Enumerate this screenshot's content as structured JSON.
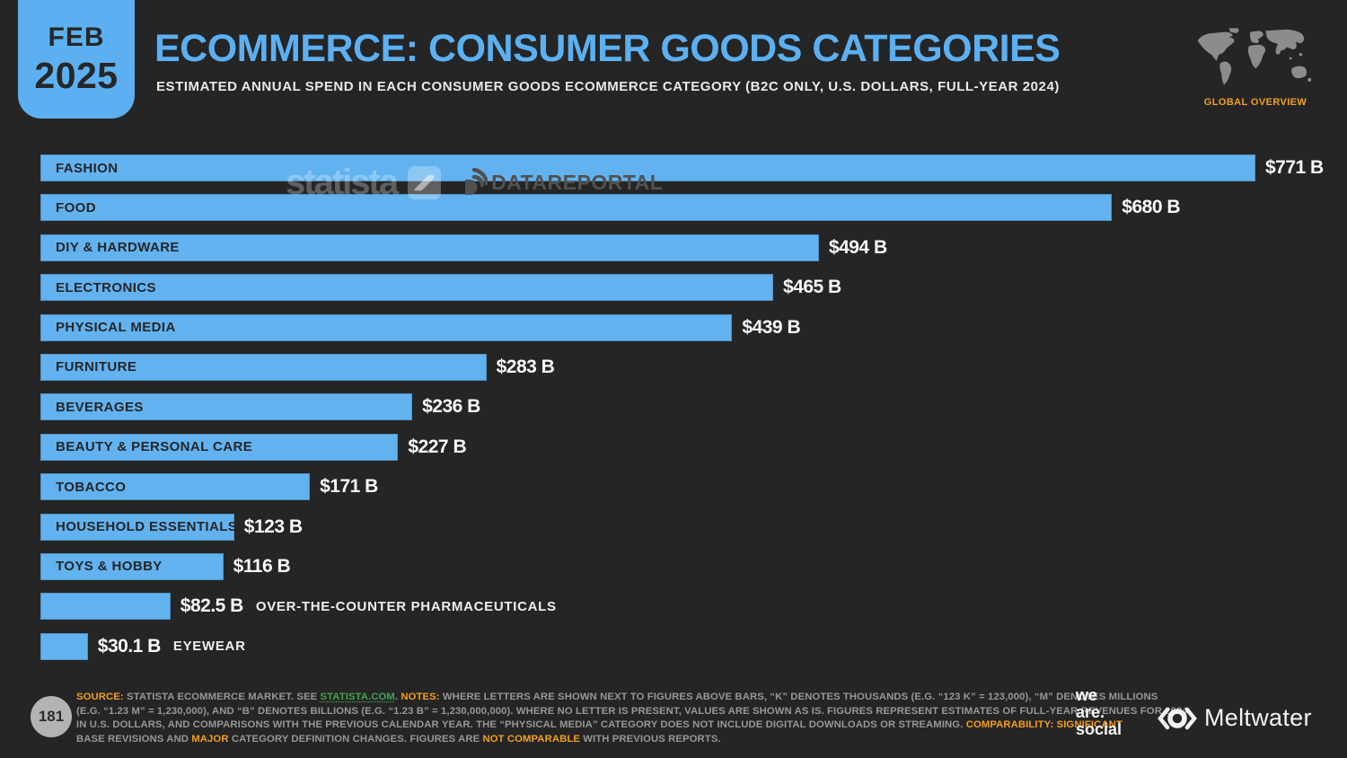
{
  "header": {
    "badge_month": "FEB",
    "badge_year": "2025",
    "title": "ECOMMERCE: CONSUMER GOODS CATEGORIES",
    "subtitle": "ESTIMATED ANNUAL SPEND IN EACH CONSUMER GOODS ECOMMERCE CATEGORY (B2C ONLY, U.S. DOLLARS, FULL-YEAR 2024)",
    "overview_label": "GLOBAL OVERVIEW"
  },
  "watermarks": {
    "statista": "statista",
    "datareportal": "DATAREPORTAL"
  },
  "chart_data": {
    "type": "bar",
    "orientation": "horizontal",
    "title": "ECOMMERCE: CONSUMER GOODS CATEGORIES",
    "subtitle": "ESTIMATED ANNUAL SPEND IN EACH CONSUMER GOODS ECOMMERCE CATEGORY (B2C ONLY, U.S. DOLLARS, FULL-YEAR 2024)",
    "unit": "U.S. dollars, billions",
    "categories": [
      "FASHION",
      "FOOD",
      "DIY & HARDWARE",
      "ELECTRONICS",
      "PHYSICAL MEDIA",
      "FURNITURE",
      "BEVERAGES",
      "BEAUTY & PERSONAL CARE",
      "TOBACCO",
      "HOUSEHOLD ESSENTIALS",
      "TOYS & HOBBY",
      "OVER-THE-COUNTER PHARMACEUTICALS",
      "EYEWEAR"
    ],
    "values": [
      771,
      680,
      494,
      465,
      439,
      283,
      236,
      227,
      171,
      123,
      116,
      82.5,
      30.1
    ],
    "value_labels": [
      "$771 B",
      "$680 B",
      "$494 B",
      "$465 B",
      "$439 B",
      "$283 B",
      "$236 B",
      "$227 B",
      "$171 B",
      "$123 B",
      "$116 B",
      "$82.5 B",
      "$30.1 B"
    ],
    "label_outside": [
      false,
      false,
      false,
      false,
      false,
      false,
      false,
      false,
      false,
      false,
      false,
      true,
      true
    ],
    "xlim": [
      0,
      771
    ],
    "grid": false,
    "legend": false,
    "bar_color": "#62b2f0"
  },
  "footer": {
    "page_number": "181",
    "source_lines": [
      [
        {
          "t": "SOURCE:",
          "s": "ob"
        },
        {
          "t": " STATISTA ECOMMERCE MARKET. SEE ",
          "s": "n"
        },
        {
          "t": "STATISTA.COM",
          "s": "g"
        },
        {
          "t": ". ",
          "s": "n"
        },
        {
          "t": "NOTES:",
          "s": "ob"
        },
        {
          "t": " WHERE LETTERS ARE SHOWN NEXT TO FIGURES ABOVE BARS, “K” DENOTES THOUSANDS (E.G. “123 K” = 123,000), “M” DENOTES MILLIONS",
          "s": "n"
        }
      ],
      [
        {
          "t": "(E.G. “1.23 M” = 1,230,000), AND “B” DENOTES BILLIONS (E.G. “1.23 B” = 1,230,000,000). WHERE NO LETTER IS PRESENT, VALUES ARE SHOWN AS IS. FIGURES REPRESENT ESTIMATES OF FULL-YEAR REVENUES FOR 2024",
          "s": "n"
        }
      ],
      [
        {
          "t": "IN U.S. DOLLARS, AND COMPARISONS WITH THE PREVIOUS CALENDAR YEAR. THE “PHYSICAL MEDIA” CATEGORY DOES NOT INCLUDE DIGITAL DOWNLOADS OR STREAMING. ",
          "s": "n"
        },
        {
          "t": "COMPARABILITY:",
          "s": "ob"
        },
        {
          "t": " ",
          "s": "n"
        },
        {
          "t": "SIGNIFICANT",
          "s": "o"
        }
      ],
      [
        {
          "t": "BASE REVISIONS AND ",
          "s": "n"
        },
        {
          "t": "MAJOR",
          "s": "o"
        },
        {
          "t": " CATEGORY DEFINITION CHANGES. FIGURES ARE ",
          "s": "n"
        },
        {
          "t": "NOT COMPARABLE",
          "s": "o"
        },
        {
          "t": " WITH PREVIOUS REPORTS.",
          "s": "n"
        }
      ]
    ],
    "logos": {
      "wearesocial_lines": [
        "we",
        "are.",
        "social"
      ],
      "meltwater": "Meltwater"
    }
  },
  "colors": {
    "background": "#252525",
    "bar_blue": "#62b2f0",
    "accent_blue": "#5cb0f2",
    "orange": "#f29e22",
    "green": "#43a451",
    "footer_gray": "#979797"
  }
}
